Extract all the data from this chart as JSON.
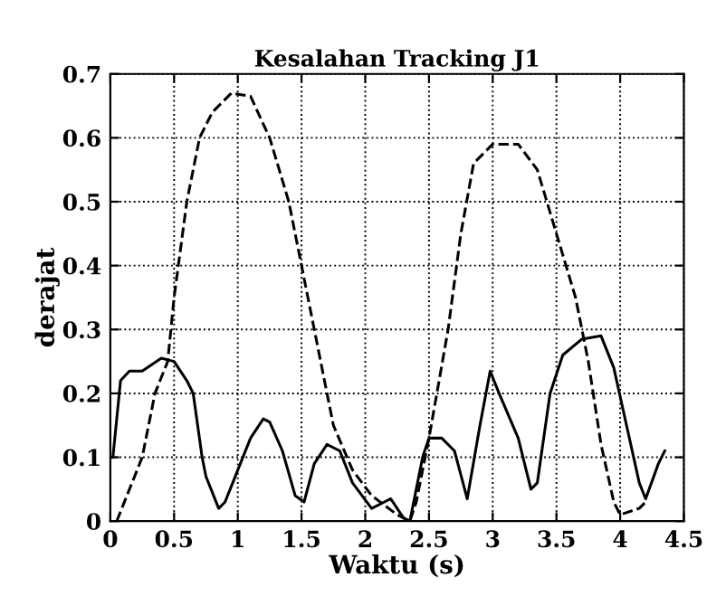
{
  "chart_data": {
    "type": "line",
    "title": "Kesalahan Tracking J1",
    "xlabel": "Waktu (s)",
    "ylabel": "derajat",
    "xlim": [
      0,
      4.5
    ],
    "ylim": [
      0,
      0.7
    ],
    "xticks": [
      0,
      0.5,
      1,
      1.5,
      2,
      2.5,
      3,
      3.5,
      4,
      4.5
    ],
    "yticks": [
      0,
      0.1,
      0.2,
      0.3,
      0.4,
      0.5,
      0.6,
      0.7
    ],
    "grid": true,
    "series": [
      {
        "color": "#000000",
        "line_style": "solid",
        "x": [
          0.02,
          0.08,
          0.15,
          0.25,
          0.4,
          0.5,
          0.6,
          0.65,
          0.72,
          0.75,
          0.85,
          0.9,
          1.0,
          1.1,
          1.2,
          1.25,
          1.35,
          1.45,
          1.52,
          1.6,
          1.7,
          1.8,
          1.9,
          2.05,
          2.15,
          2.2,
          2.3,
          2.35,
          2.45,
          2.5,
          2.6,
          2.7,
          2.8,
          2.9,
          2.98,
          3.05,
          3.2,
          3.3,
          3.35,
          3.45,
          3.55,
          3.7,
          3.85,
          3.95,
          4.05,
          4.15,
          4.2,
          4.3,
          4.35
        ],
        "values": [
          0.1,
          0.22,
          0.235,
          0.235,
          0.255,
          0.25,
          0.22,
          0.2,
          0.1,
          0.07,
          0.02,
          0.03,
          0.08,
          0.13,
          0.16,
          0.155,
          0.11,
          0.04,
          0.03,
          0.09,
          0.12,
          0.11,
          0.06,
          0.02,
          0.03,
          0.035,
          0.005,
          0.0,
          0.1,
          0.13,
          0.13,
          0.11,
          0.035,
          0.15,
          0.235,
          0.2,
          0.13,
          0.05,
          0.06,
          0.2,
          0.26,
          0.285,
          0.29,
          0.24,
          0.15,
          0.06,
          0.035,
          0.09,
          0.11
        ]
      },
      {
        "color": "#000000",
        "line_style": "dashed",
        "x": [
          0.05,
          0.15,
          0.25,
          0.35,
          0.45,
          0.5,
          0.6,
          0.7,
          0.8,
          0.95,
          1.1,
          1.25,
          1.4,
          1.5,
          1.6,
          1.75,
          1.9,
          2.05,
          2.25,
          2.35,
          2.4,
          2.5,
          2.65,
          2.75,
          2.85,
          3.0,
          3.2,
          3.35,
          3.5,
          3.65,
          3.75,
          3.85,
          3.95,
          4.0,
          4.15,
          4.2
        ],
        "values": [
          0.0,
          0.05,
          0.1,
          0.2,
          0.25,
          0.35,
          0.5,
          0.6,
          0.64,
          0.67,
          0.665,
          0.6,
          0.5,
          0.4,
          0.3,
          0.15,
          0.08,
          0.04,
          0.01,
          0.0,
          0.03,
          0.13,
          0.3,
          0.45,
          0.56,
          0.59,
          0.59,
          0.55,
          0.45,
          0.35,
          0.25,
          0.12,
          0.03,
          0.01,
          0.02,
          0.03
        ]
      }
    ]
  }
}
